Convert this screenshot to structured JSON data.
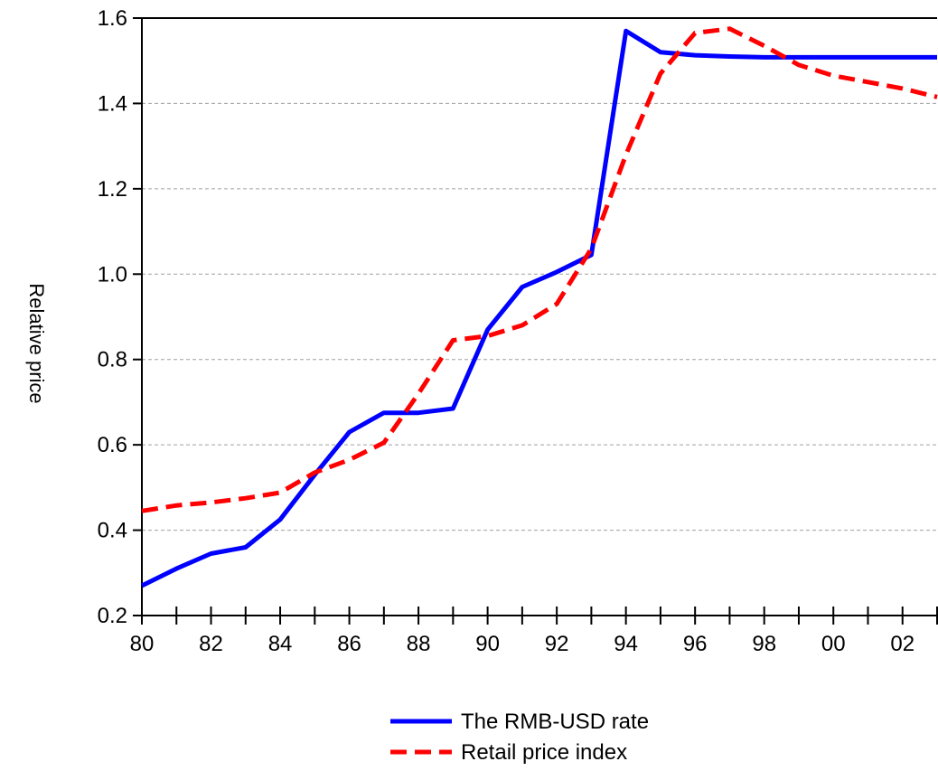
{
  "chart_data": {
    "type": "line",
    "title": "",
    "xlabel": "",
    "ylabel": "Relative price",
    "x": [
      1980,
      1981,
      1982,
      1983,
      1984,
      1985,
      1986,
      1987,
      1988,
      1989,
      1990,
      1991,
      1992,
      1993,
      1994,
      1995,
      1996,
      1997,
      1998,
      1999,
      2000,
      2001,
      2002,
      2003
    ],
    "x_tick_labels": [
      "80",
      "82",
      "84",
      "86",
      "88",
      "90",
      "92",
      "94",
      "96",
      "98",
      "00",
      "02"
    ],
    "x_tick_values": [
      1980,
      1982,
      1984,
      1986,
      1988,
      1990,
      1992,
      1994,
      1996,
      1998,
      2000,
      2002
    ],
    "xlim": [
      1980,
      2003
    ],
    "ylim": [
      0.2,
      1.6
    ],
    "y_ticks": [
      0.2,
      0.4,
      0.6,
      0.8,
      1.0,
      1.2,
      1.4,
      1.6
    ],
    "y_tick_labels": [
      "0.2",
      "0.4",
      "0.6",
      "0.8",
      "1.0",
      "1.2",
      "1.4",
      "1.6"
    ],
    "grid": "horizontal dashed",
    "legend_position": "bottom-center",
    "series": [
      {
        "name": "The RMB-USD rate",
        "color": "#0000ff",
        "style": "solid",
        "values": [
          0.27,
          0.31,
          0.345,
          0.36,
          0.425,
          0.53,
          0.63,
          0.675,
          0.675,
          0.685,
          0.87,
          0.97,
          1.005,
          1.045,
          1.57,
          1.52,
          1.513,
          1.51,
          1.508,
          1.508,
          1.508,
          1.508,
          1.508,
          1.508
        ]
      },
      {
        "name": "Retail price index",
        "color": "#ff0000",
        "style": "dashed",
        "values": [
          0.445,
          0.458,
          0.465,
          0.475,
          0.488,
          0.535,
          0.565,
          0.605,
          0.72,
          0.845,
          0.855,
          0.88,
          0.93,
          1.06,
          1.28,
          1.47,
          1.565,
          1.575,
          1.535,
          1.49,
          1.465,
          1.45,
          1.435,
          1.415
        ]
      }
    ]
  }
}
